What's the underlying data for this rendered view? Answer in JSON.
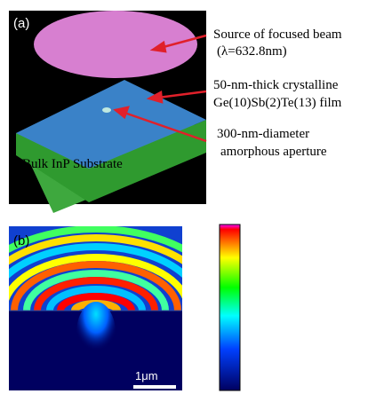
{
  "panel_a": {
    "label": "(a)",
    "annotations": [
      {
        "lines": [
          "Source of focused beam",
          "(λ=632.8nm)"
        ]
      },
      {
        "lines": [
          "50-nm-thick crystalline",
          "Ge(10)Sb(2)Te(13) film"
        ]
      },
      {
        "lines": [
          "300-nm-diameter",
          "amorphous aperture"
        ]
      }
    ],
    "substrate_label": "Bulk InP Substrate"
  },
  "panel_b": {
    "label": "(b)",
    "scale_bar": "1μm"
  }
}
